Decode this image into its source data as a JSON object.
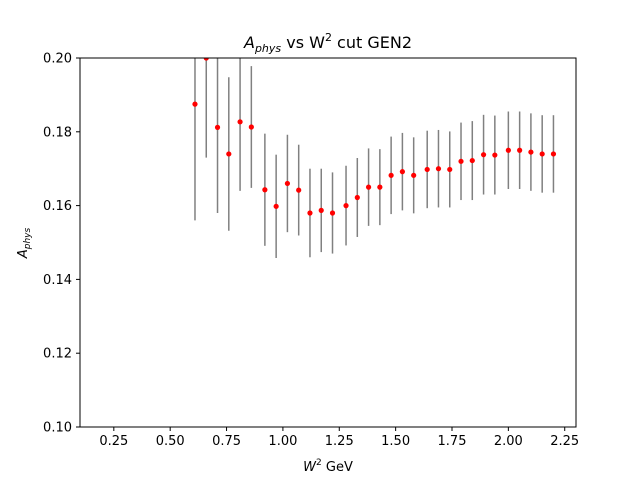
{
  "chart_data": {
    "type": "scatter",
    "title_main": "A",
    "title_sub": "phys",
    "title_mid": " vs W",
    "title_sup": "2",
    "title_tail": " cut GEN2",
    "xlabel_main": "W",
    "xlabel_sup": "2",
    "xlabel_tail": " GeV",
    "ylabel_main": "A",
    "ylabel_sub": "phys",
    "xlim": [
      0.1,
      2.3
    ],
    "ylim": [
      0.1,
      0.2
    ],
    "xticks": [
      0.25,
      0.5,
      0.75,
      1.0,
      1.25,
      1.5,
      1.75,
      2.0,
      2.25
    ],
    "xtick_labels": [
      "0.25",
      "0.50",
      "0.75",
      "1.00",
      "1.25",
      "1.50",
      "1.75",
      "2.00",
      "2.25"
    ],
    "yticks": [
      0.1,
      0.12,
      0.14,
      0.16,
      0.18,
      0.2
    ],
    "ytick_labels": [
      "0.10",
      "0.12",
      "0.14",
      "0.16",
      "0.18",
      "0.20"
    ],
    "grid": false,
    "marker_color": "#ff0000",
    "errorbar_color": "#808080",
    "points": [
      {
        "x": 0.61,
        "y": 0.1875,
        "err": 0.0315
      },
      {
        "x": 0.66,
        "y": 0.2,
        "err": 0.027
      },
      {
        "x": 0.71,
        "y": 0.1812,
        "err": 0.0232
      },
      {
        "x": 0.76,
        "y": 0.174,
        "err": 0.0208
      },
      {
        "x": 0.81,
        "y": 0.1827,
        "err": 0.0187
      },
      {
        "x": 0.86,
        "y": 0.1813,
        "err": 0.0165
      },
      {
        "x": 0.92,
        "y": 0.1643,
        "err": 0.0152
      },
      {
        "x": 0.97,
        "y": 0.1598,
        "err": 0.014
      },
      {
        "x": 1.02,
        "y": 0.166,
        "err": 0.0132
      },
      {
        "x": 1.07,
        "y": 0.1642,
        "err": 0.0123
      },
      {
        "x": 1.12,
        "y": 0.158,
        "err": 0.012
      },
      {
        "x": 1.17,
        "y": 0.1587,
        "err": 0.0113
      },
      {
        "x": 1.22,
        "y": 0.158,
        "err": 0.011
      },
      {
        "x": 1.28,
        "y": 0.16,
        "err": 0.0108
      },
      {
        "x": 1.33,
        "y": 0.1622,
        "err": 0.0107
      },
      {
        "x": 1.38,
        "y": 0.165,
        "err": 0.0105
      },
      {
        "x": 1.43,
        "y": 0.165,
        "err": 0.0103
      },
      {
        "x": 1.48,
        "y": 0.1682,
        "err": 0.0105
      },
      {
        "x": 1.53,
        "y": 0.1692,
        "err": 0.0105
      },
      {
        "x": 1.58,
        "y": 0.1682,
        "err": 0.0103
      },
      {
        "x": 1.64,
        "y": 0.1698,
        "err": 0.0105
      },
      {
        "x": 1.69,
        "y": 0.17,
        "err": 0.0105
      },
      {
        "x": 1.74,
        "y": 0.1698,
        "err": 0.0103
      },
      {
        "x": 1.79,
        "y": 0.172,
        "err": 0.0105
      },
      {
        "x": 1.84,
        "y": 0.1722,
        "err": 0.0107
      },
      {
        "x": 1.89,
        "y": 0.1738,
        "err": 0.0108
      },
      {
        "x": 1.94,
        "y": 0.1737,
        "err": 0.0107
      },
      {
        "x": 2.0,
        "y": 0.175,
        "err": 0.0105
      },
      {
        "x": 2.05,
        "y": 0.175,
        "err": 0.0105
      },
      {
        "x": 2.1,
        "y": 0.1745,
        "err": 0.0105
      },
      {
        "x": 2.15,
        "y": 0.174,
        "err": 0.0105
      },
      {
        "x": 2.2,
        "y": 0.174,
        "err": 0.0105
      }
    ]
  }
}
